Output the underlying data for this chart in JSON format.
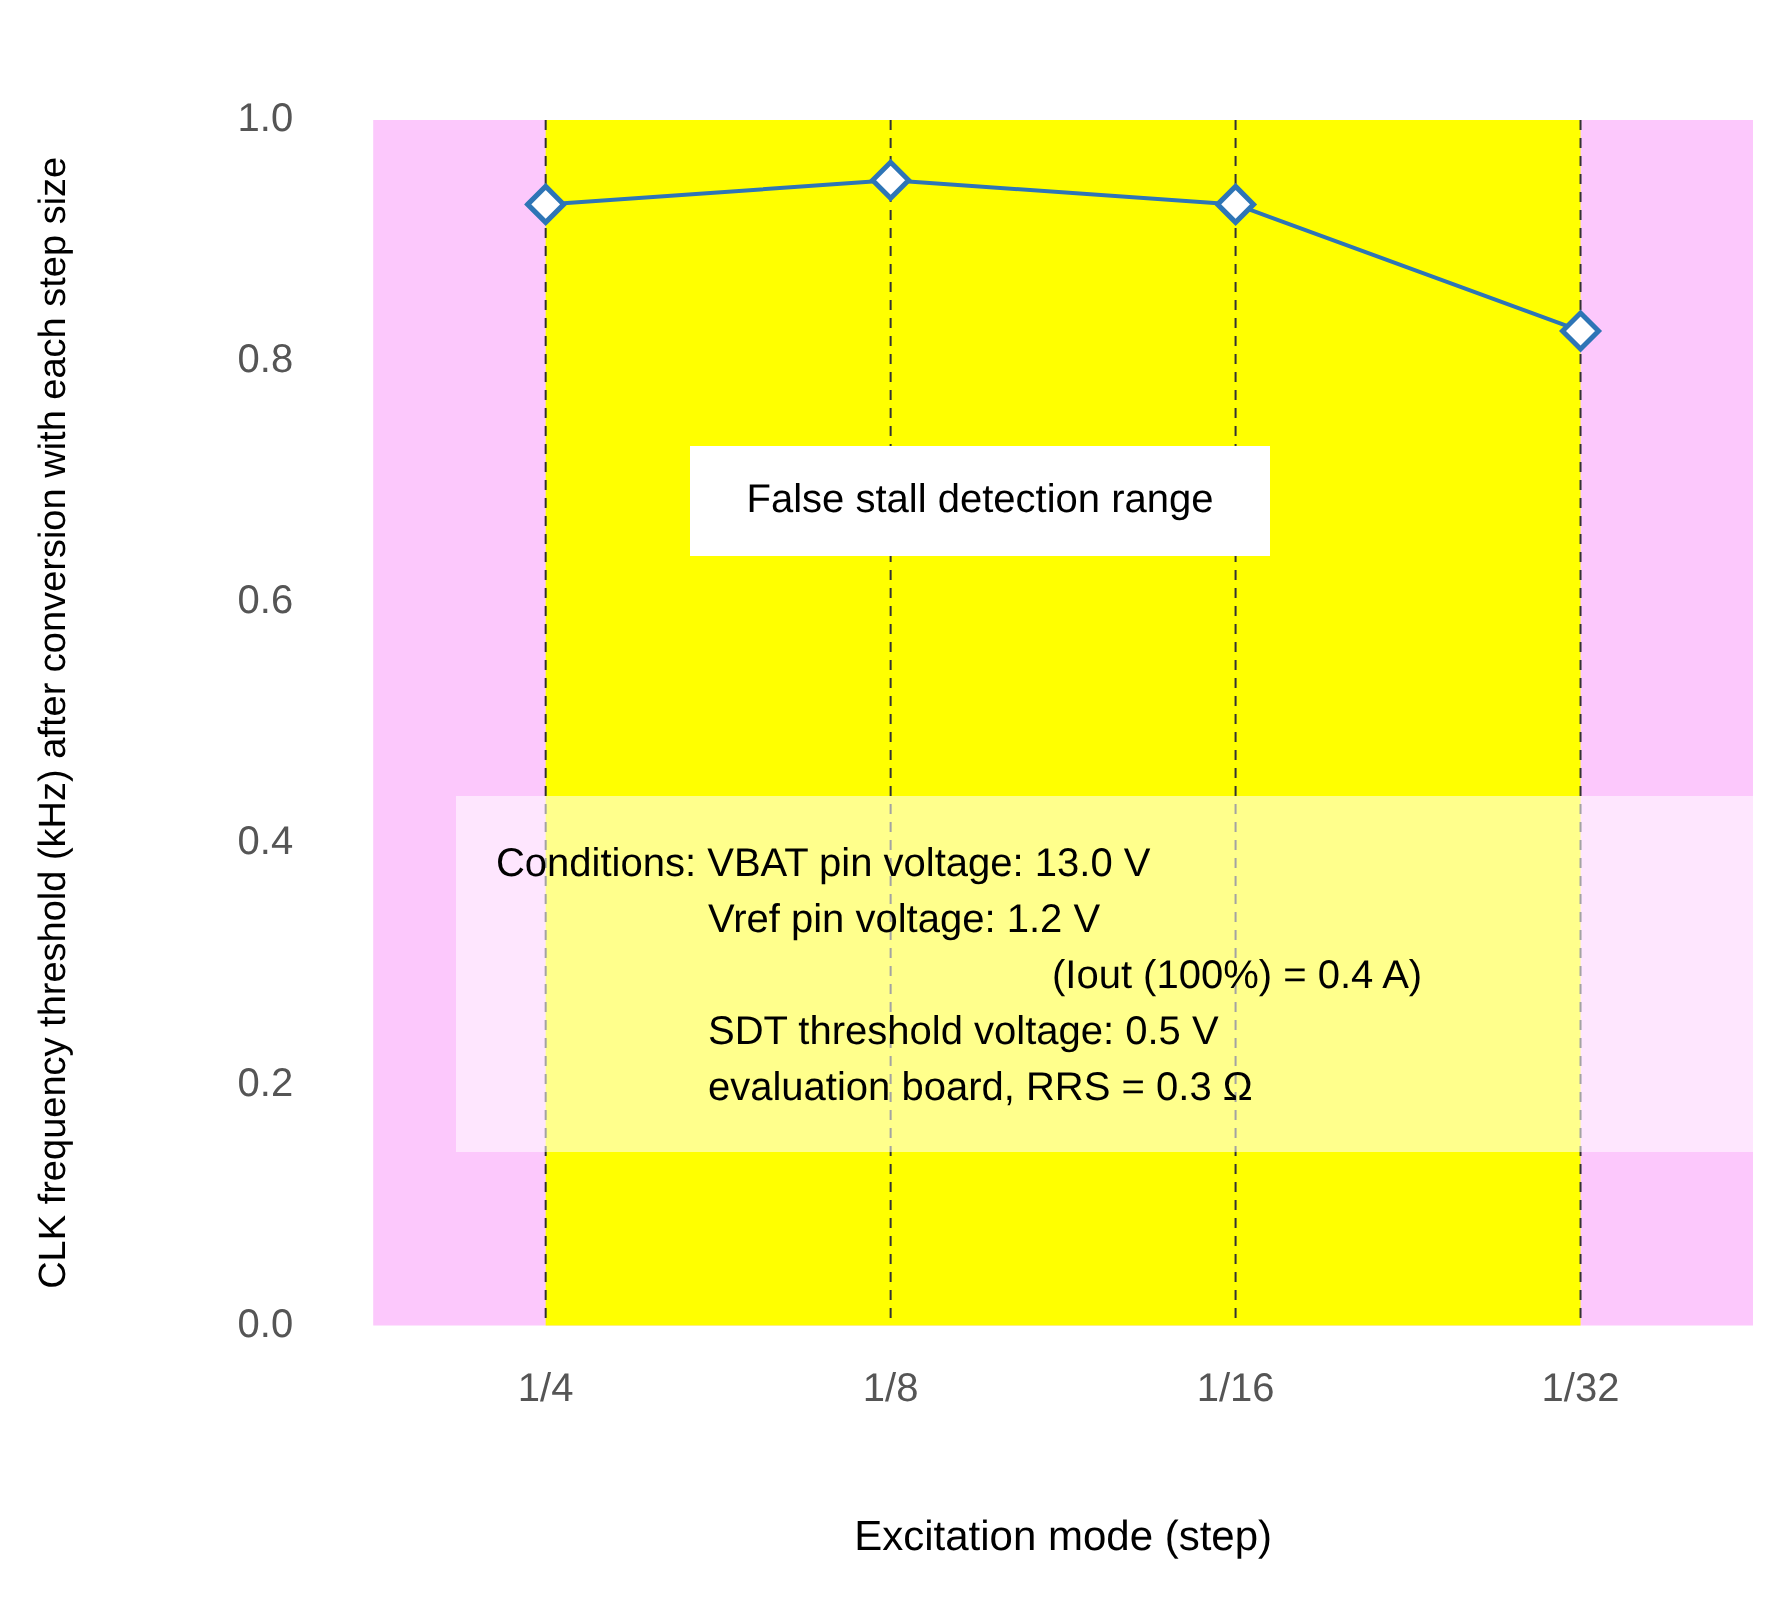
{
  "chart_data": {
    "type": "line",
    "xlabel": "Excitation mode (step)",
    "ylabel": "CLK frequency threshold (kHz) after conversion with each step size",
    "categories": [
      "1/4",
      "1/8",
      "1/16",
      "1/32"
    ],
    "series": [
      {
        "color": "#2e75b6",
        "values": [
          0.93,
          0.95,
          0.93,
          0.825
        ]
      }
    ],
    "marker": "diamond",
    "line_style": "solid",
    "grid": false,
    "legend": false,
    "ylim": [
      0,
      1.0
    ],
    "yticks": [
      {
        "value": 0,
        "label": "0.0"
      },
      0.2,
      0.4,
      0.6,
      0.8,
      {
        "value": 1,
        "label": "1.0"
      }
    ],
    "bands": [
      {
        "axis": "y",
        "from": 0,
        "to": 1.0,
        "color": "#fcc8fc"
      },
      {
        "axis": "x",
        "from": "1/4",
        "to": "1/32",
        "color": "#ffff00",
        "label": "False stall detection range"
      }
    ],
    "ref_lines": [
      {
        "axis": "x",
        "value": "1/4",
        "color": "#333333",
        "line_style": "dashed"
      },
      {
        "axis": "x",
        "value": "1/8",
        "color": "#333333",
        "line_style": "dashed"
      },
      {
        "axis": "x",
        "value": "1/16",
        "color": "#333333",
        "line_style": "dashed"
      },
      {
        "axis": "x",
        "value": "1/32",
        "color": "#333333",
        "line_style": "dashed"
      }
    ],
    "annotations": [
      "Conditions: VBAT pin voltage: 13.0 V",
      "Vref pin voltage: 1.2 V",
      "(Iout (100%) = 0.4 A)",
      "SDT threshold voltage: 0.5 V",
      "evaluation board, RRS = 0.3 Ω"
    ]
  }
}
